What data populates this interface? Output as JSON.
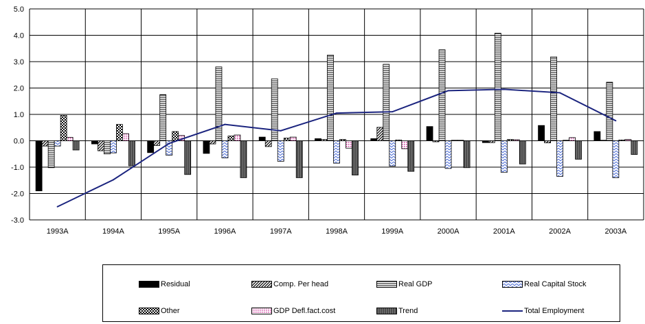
{
  "chart_data": {
    "type": "bar",
    "categories": [
      "1993A",
      "1994A",
      "1995A",
      "1996A",
      "1997A",
      "1998A",
      "1999A",
      "2000A",
      "2001A",
      "2002A",
      "2003A"
    ],
    "ylim": [
      -3.0,
      5.0
    ],
    "yticks": [
      "-3.0",
      "-2.0",
      "-1.0",
      "0.0",
      "1.0",
      "2.0",
      "3.0",
      "4.0",
      "5.0"
    ],
    "grid": true,
    "legend_placement": "bottom",
    "series": [
      {
        "name": "Residual",
        "color": "#000000",
        "pattern": "solid",
        "values": [
          -1.9,
          -0.12,
          -0.45,
          -0.48,
          0.14,
          0.08,
          0.08,
          0.54,
          -0.07,
          0.58,
          0.35
        ]
      },
      {
        "name": "Comp. Per head",
        "color": "#000000",
        "pattern": "diag",
        "values": [
          -0.2,
          -0.38,
          -0.18,
          -0.12,
          -0.22,
          0.05,
          0.51,
          -0.04,
          -0.07,
          -0.08,
          0.02
        ]
      },
      {
        "name": "Real GDP",
        "color": "#000000",
        "pattern": "hlines",
        "values": [
          -1.02,
          -0.5,
          1.75,
          2.8,
          2.35,
          3.25,
          2.9,
          3.45,
          4.08,
          3.18,
          2.22
        ]
      },
      {
        "name": "Real Capital Stock",
        "color": "#4a6bd6",
        "pattern": "zigzag",
        "values": [
          -0.2,
          -0.46,
          -0.55,
          -0.65,
          -0.78,
          -0.85,
          -0.96,
          -1.05,
          -1.2,
          -1.35,
          -1.4
        ]
      },
      {
        "name": "Other",
        "color": "#000000",
        "pattern": "checker",
        "values": [
          0.96,
          0.62,
          0.35,
          0.18,
          0.1,
          0.05,
          0.03,
          0.02,
          0.05,
          0.02,
          0.03
        ]
      },
      {
        "name": "GDP Defl.fact.cost",
        "color": "#cc3399",
        "pattern": "dots",
        "values": [
          0.13,
          0.27,
          0.2,
          0.22,
          0.14,
          -0.28,
          -0.3,
          0.02,
          0.04,
          0.12,
          0.05
        ]
      },
      {
        "name": "Trend",
        "color": "#555555",
        "pattern": "vlines",
        "values": [
          -0.35,
          -0.95,
          -1.28,
          -1.4,
          -1.4,
          -1.3,
          -1.16,
          -1.02,
          -0.88,
          -0.7,
          -0.52
        ]
      }
    ],
    "line_series": {
      "name": "Total Employment",
      "color": "#1a237e",
      "values": [
        -2.5,
        -1.48,
        -0.1,
        0.62,
        0.38,
        1.05,
        1.1,
        1.9,
        1.95,
        1.82,
        0.76
      ]
    }
  }
}
